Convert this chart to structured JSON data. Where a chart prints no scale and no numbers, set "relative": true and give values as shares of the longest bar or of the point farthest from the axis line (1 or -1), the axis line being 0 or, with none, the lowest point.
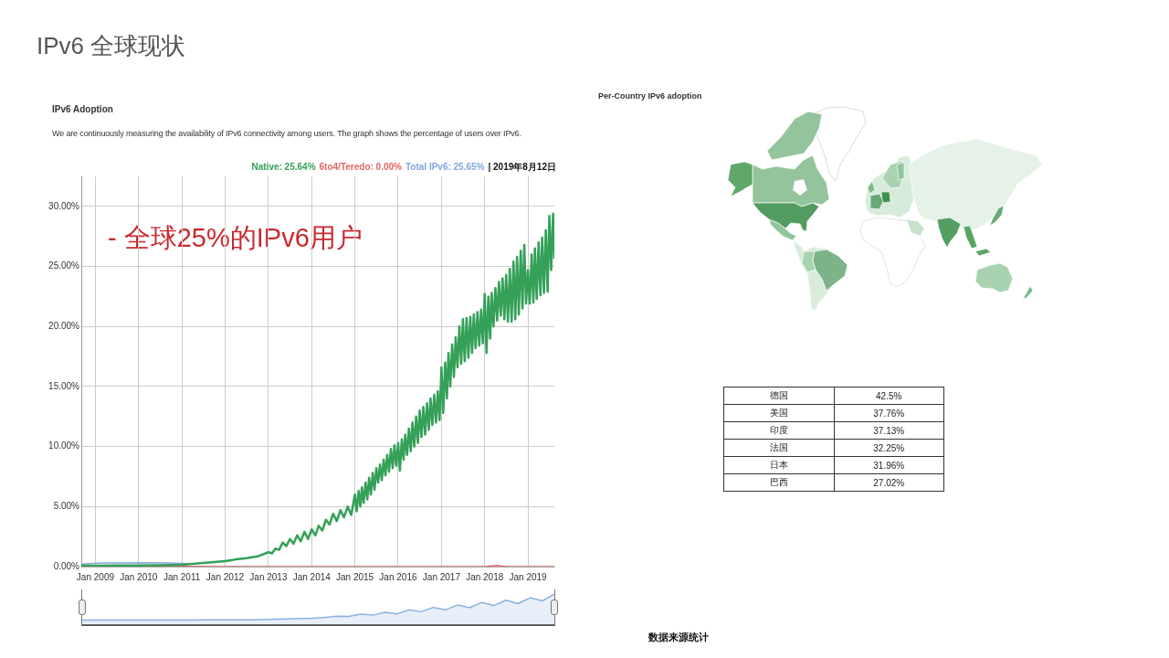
{
  "chart_data": [
    {
      "type": "line",
      "title": "IPv6 Adoption",
      "subtitle": "We are continuously measuring the availability of IPv6 connectivity among users. The graph shows the percentage of users over IPv6.",
      "series": [
        {
          "name": "Native: 25.64%",
          "color": "#34a058",
          "x": [
            "2008-09-04",
            "2009-01",
            "2009-07",
            "2010-01",
            "2010-07",
            "2011-01",
            "2011-07",
            "2012-01",
            "2012-04",
            "2012-07",
            "2012-10",
            "2013-01",
            "2013-02",
            "2013-03",
            "2013-04",
            "2013-05",
            "2013-06",
            "2013-07",
            "2013-08",
            "2013-09",
            "2013-10",
            "2013-11",
            "2013-12",
            "2014-01",
            "2014-02",
            "2014-03",
            "2014-04",
            "2014-05",
            "2014-06",
            "2014-07",
            "2014-08",
            "2014-09",
            "2014-10",
            "2014-11",
            "2014-12",
            "2015-01-01",
            "2015-01-16",
            "2015-02-01",
            "2015-02-16",
            "2015-03-01",
            "2015-03-16",
            "2015-04-01",
            "2015-04-16",
            "2015-05-01",
            "2015-05-16",
            "2015-06-01",
            "2015-06-16",
            "2015-07-01",
            "2015-07-16",
            "2015-08-01",
            "2015-08-16",
            "2015-09-01",
            "2015-09-16",
            "2015-10-01",
            "2015-10-16",
            "2015-11-01",
            "2015-11-16",
            "2015-12-01",
            "2015-12-16",
            "2016-01-01",
            "2016-01-16",
            "2016-02-01",
            "2016-02-16",
            "2016-03-01",
            "2016-03-16",
            "2016-04-01",
            "2016-04-16",
            "2016-05-01",
            "2016-05-16",
            "2016-06-01",
            "2016-06-16",
            "2016-07-01",
            "2016-07-16",
            "2016-08-01",
            "2016-08-16",
            "2016-09-01",
            "2016-09-16",
            "2016-10-01",
            "2016-10-16",
            "2016-11-01",
            "2016-11-16",
            "2016-12-01",
            "2016-12-16",
            "2017-01-01",
            "2017-01-16",
            "2017-02-01",
            "2017-02-16",
            "2017-03-01",
            "2017-03-16",
            "2017-04-01",
            "2017-04-16",
            "2017-05-01",
            "2017-05-16",
            "2017-06-01",
            "2017-06-16",
            "2017-07-01",
            "2017-07-16",
            "2017-08-01",
            "2017-08-16",
            "2017-09-01",
            "2017-09-16",
            "2017-10-01",
            "2017-10-16",
            "2017-11-01",
            "2017-11-16",
            "2017-12-01",
            "2017-12-16",
            "2018-01-01",
            "2018-01-16",
            "2018-02-01",
            "2018-02-16",
            "2018-03-01",
            "2018-03-16",
            "2018-04-01",
            "2018-04-16",
            "2018-05-01",
            "2018-05-16",
            "2018-06-01",
            "2018-06-16",
            "2018-07-01",
            "2018-07-16",
            "2018-08-01",
            "2018-08-16",
            "2018-09-01",
            "2018-09-16",
            "2018-10-01",
            "2018-10-16",
            "2018-11-01",
            "2018-11-16",
            "2018-12-01",
            "2018-12-16",
            "2019-01-01",
            "2019-01-16",
            "2019-02-01",
            "2019-02-16",
            "2019-03-01",
            "2019-03-16",
            "2019-04-01",
            "2019-04-16",
            "2019-05-01",
            "2019-05-16",
            "2019-06-01",
            "2019-06-16",
            "2019-07-01",
            "2019-07-16",
            "2019-08-01",
            "2019-08-12"
          ],
          "values": [
            0.08,
            0.08,
            0.09,
            0.1,
            0.12,
            0.15,
            0.3,
            0.45,
            0.6,
            0.7,
            0.85,
            1.2,
            1.1,
            1.5,
            1.4,
            2.0,
            1.7,
            2.3,
            1.9,
            2.6,
            2.1,
            2.9,
            2.3,
            3.1,
            2.6,
            3.4,
            3.0,
            3.9,
            3.5,
            4.4,
            3.8,
            4.7,
            4.1,
            5.0,
            4.3,
            6.0,
            4.6,
            6.3,
            5.0,
            6.6,
            5.3,
            7.0,
            5.6,
            7.4,
            6.0,
            7.8,
            6.4,
            8.2,
            7.0,
            8.5,
            7.2,
            8.9,
            7.6,
            9.3,
            7.9,
            9.8,
            8.2,
            10.1,
            8.4,
            10.3,
            8.0,
            10.6,
            8.9,
            11.0,
            9.3,
            11.5,
            9.6,
            12.0,
            10.0,
            12.5,
            10.3,
            13.0,
            10.8,
            13.3,
            11.0,
            13.6,
            11.4,
            14.0,
            11.8,
            14.3,
            12.0,
            14.6,
            12.2,
            16.6,
            12.8,
            17.0,
            14.0,
            17.8,
            15.0,
            18.5,
            15.8,
            19.1,
            16.6,
            20.0,
            16.9,
            20.6,
            17.1,
            20.7,
            17.4,
            20.8,
            17.8,
            21.0,
            18.2,
            21.2,
            18.4,
            21.4,
            18.6,
            22.7,
            17.8,
            22.5,
            19.0,
            22.8,
            20.0,
            23.2,
            20.5,
            23.7,
            20.9,
            24.0,
            20.6,
            24.3,
            20.4,
            24.8,
            20.4,
            25.4,
            20.6,
            25.8,
            21.0,
            26.3,
            21.5,
            26.8,
            21.9,
            24.7,
            21.9,
            26.0,
            22.0,
            26.5,
            22.3,
            27.0,
            22.6,
            27.4,
            22.8,
            28.0,
            22.9,
            29.2,
            24.7,
            29.4,
            25.64
          ]
        },
        {
          "name": "6to4/Teredo: 0.00%",
          "color": "#e06666",
          "x": [
            "2008-09-04",
            "2010-01",
            "2012-01",
            "2014-01",
            "2016-01",
            "2018-01",
            "2018-04-15",
            "2018-07",
            "2019-08-12"
          ],
          "values": [
            0.05,
            0.03,
            0,
            0,
            0,
            0,
            0.1,
            0,
            0
          ]
        },
        {
          "name": "Total IPv6: 25.65%",
          "color": "#7fa7dc",
          "x": [
            "2008-09-04",
            "2009-03",
            "2009-09",
            "2010-03",
            "2010-09",
            "2011-03"
          ],
          "values": [
            0.2,
            0.3,
            0.3,
            0.33,
            0.3,
            0.25
          ]
        }
      ],
      "xlim": [
        "2008-09-04",
        "2019-08-12"
      ],
      "xticks": [
        {
          "value": "2009-01",
          "label": "Jan 2009"
        },
        {
          "value": "2010-01",
          "label": "Jan 2010"
        },
        {
          "value": "2011-01",
          "label": "Jan 2011"
        },
        {
          "value": "2012-01",
          "label": "Jan 2012"
        },
        {
          "value": "2013-01",
          "label": "Jan 2013"
        },
        {
          "value": "2014-01",
          "label": "Jan 2014"
        },
        {
          "value": "2015-01",
          "label": "Jan 2015"
        },
        {
          "value": "2016-01",
          "label": "Jan 2016"
        },
        {
          "value": "2017-01",
          "label": "Jan 2017"
        },
        {
          "value": "2018-01",
          "label": "Jan 2018"
        },
        {
          "value": "2019-01",
          "label": "Jan 2019"
        }
      ],
      "ylim": [
        0,
        32.5
      ],
      "yticks": [
        {
          "value": 0,
          "label": "0.00%"
        },
        {
          "value": 5,
          "label": "5.00%"
        },
        {
          "value": 10,
          "label": "10.00%"
        },
        {
          "value": 15,
          "label": "15.00%"
        },
        {
          "value": 20,
          "label": "20.00%"
        },
        {
          "value": 25,
          "label": "25.00%"
        },
        {
          "value": 30,
          "label": "30.00%"
        }
      ],
      "grid": true,
      "legend": "top right",
      "marker": "none",
      "annotations": [
        "IPv6 全球现状",
        "- 全球25%的IPv6用户",
        "| 2019年8月12日"
      ]
    },
    {
      "type": "area",
      "relative": true,
      "marker": "none",
      "categories": [
        null,
        null,
        null,
        null,
        null,
        null,
        null,
        null,
        null,
        null,
        null,
        null,
        null,
        null,
        null,
        null,
        null,
        null,
        null,
        null,
        null,
        null,
        null,
        null,
        null,
        null,
        null,
        null,
        null,
        null,
        null,
        null,
        null,
        null,
        null,
        null,
        null,
        null,
        null,
        null
      ],
      "series": [
        {
          "color": "#8ab0e0",
          "values": [
            0.16,
            0.16,
            0.16,
            0.16,
            0.16,
            0.16,
            0.16,
            0.16,
            0.16,
            0.16,
            0.17,
            0.17,
            0.17,
            0.17,
            0.17,
            0.18,
            0.19,
            0.2,
            0.21,
            0.22,
            0.24,
            0.29,
            0.28,
            0.35,
            0.32,
            0.41,
            0.36,
            0.49,
            0.43,
            0.57,
            0.49,
            0.65,
            0.56,
            0.73,
            0.63,
            0.8,
            0.69,
            0.88,
            0.78,
            1
          ]
        }
      ]
    },
    {
      "type": "other",
      "title": "Per-Country IPv6 adoption",
      "categories": [
        "德国",
        "美国",
        "印度",
        "法国",
        "日本",
        "巴西"
      ],
      "values": [
        42.5,
        37.76,
        37.13,
        32.25,
        31.96,
        27.02
      ],
      "value_labels": [
        "42.5%",
        "37.76%",
        "37.13%",
        "32.25%",
        "31.96%",
        "27.02%"
      ],
      "annotations": [
        "数据来源统计"
      ]
    }
  ]
}
